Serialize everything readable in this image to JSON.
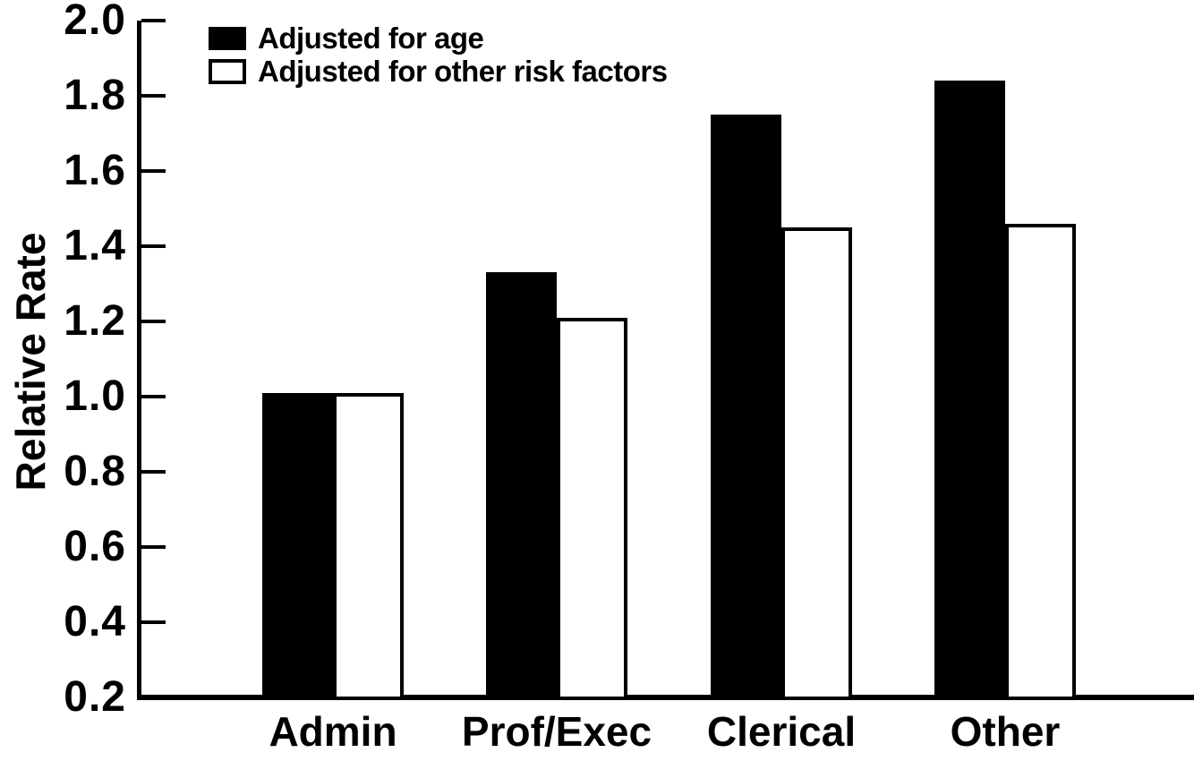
{
  "chart_data": {
    "type": "bar",
    "title": "",
    "ylabel": "Relative Rate",
    "xlabel": "",
    "ylim": [
      0.2,
      2.0
    ],
    "ytick_step": 0.2,
    "yticks": [
      "2.0",
      "1.8",
      "1.6",
      "1.4",
      "1.2",
      "1.0",
      "0.8",
      "0.6",
      "0.4",
      "0.2"
    ],
    "categories": [
      "Admin",
      "Prof/Exec",
      "Clerical",
      "Other"
    ],
    "series": [
      {
        "name": "Adjusted for age",
        "fill": "#000000",
        "values": [
          1.01,
          1.33,
          1.75,
          1.84
        ]
      },
      {
        "name": "Adjusted for other risk factors",
        "fill": "#ffffff",
        "values": [
          1.01,
          1.21,
          1.45,
          1.46
        ]
      }
    ],
    "legend_position": "top-left",
    "grid": false,
    "colors": {
      "axis": "#000000",
      "background": "#ffffff",
      "bar_border": "#000000"
    }
  }
}
